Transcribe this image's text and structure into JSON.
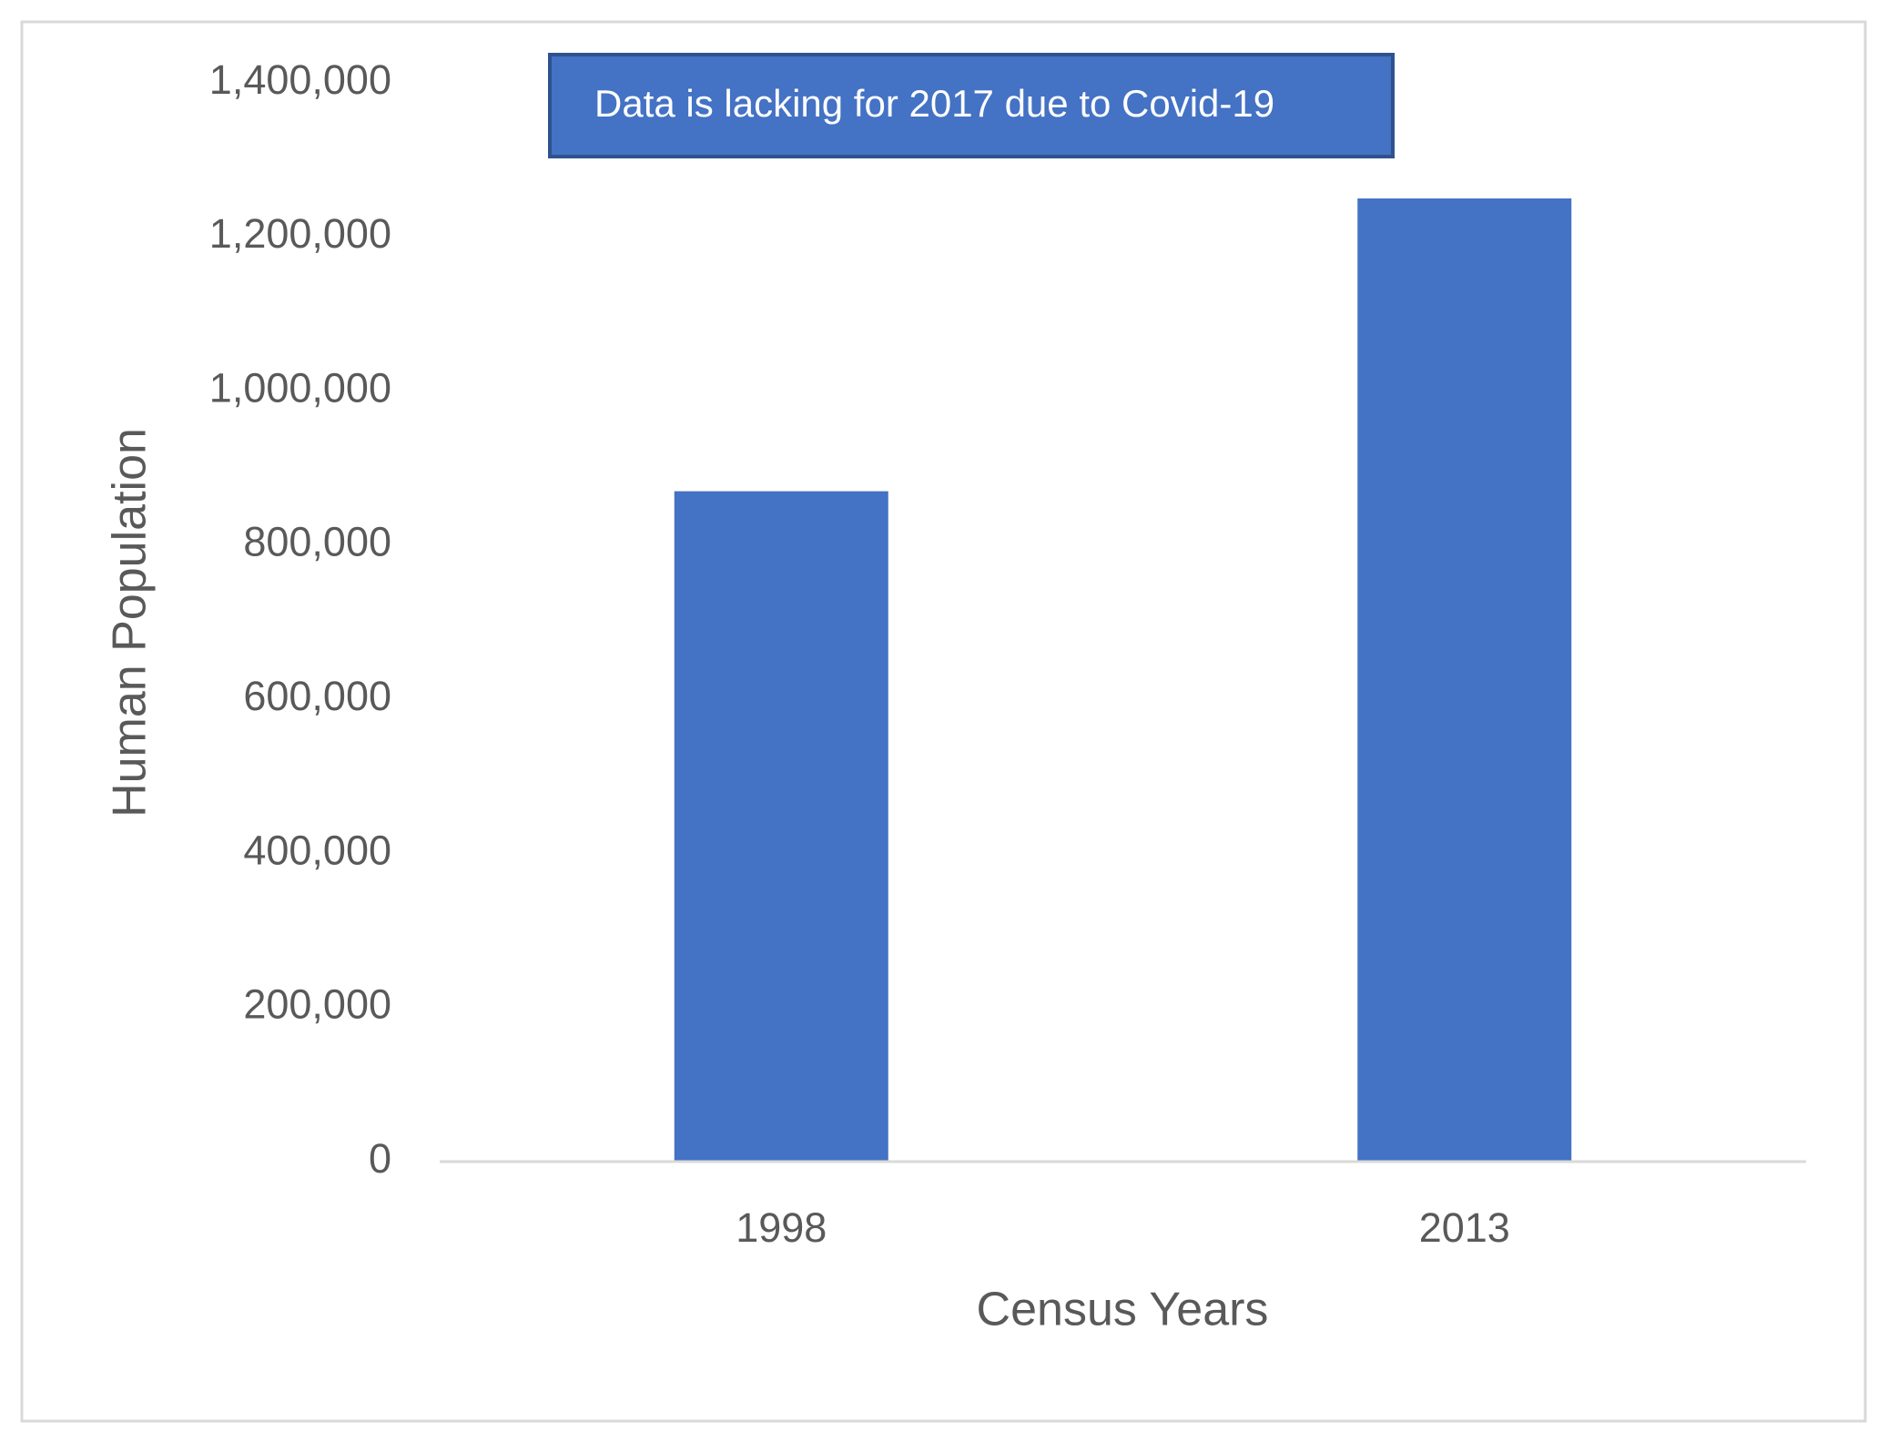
{
  "chart_data": {
    "type": "bar",
    "annotation": "Data is lacking for 2017 due to Covid-19",
    "x_label": "Census Years",
    "y_label": "Human Population",
    "categories": [
      "1998",
      "2013"
    ],
    "values": [
      870000,
      1250000
    ],
    "color": "#4472c4",
    "ylim": [
      0,
      1400000
    ],
    "yticks": [
      0,
      {
        "value": 200000,
        "label": "200,000"
      },
      {
        "value": 400000,
        "label": "400,000"
      },
      {
        "value": 600000,
        "label": "600,000"
      },
      {
        "value": 800000,
        "label": "800,000"
      },
      {
        "value": 1000000,
        "label": "1,000,000"
      },
      {
        "value": 1200000,
        "label": "1,200,000"
      },
      {
        "value": 1400000,
        "label": "1,400,000"
      }
    ],
    "grid": false
  }
}
